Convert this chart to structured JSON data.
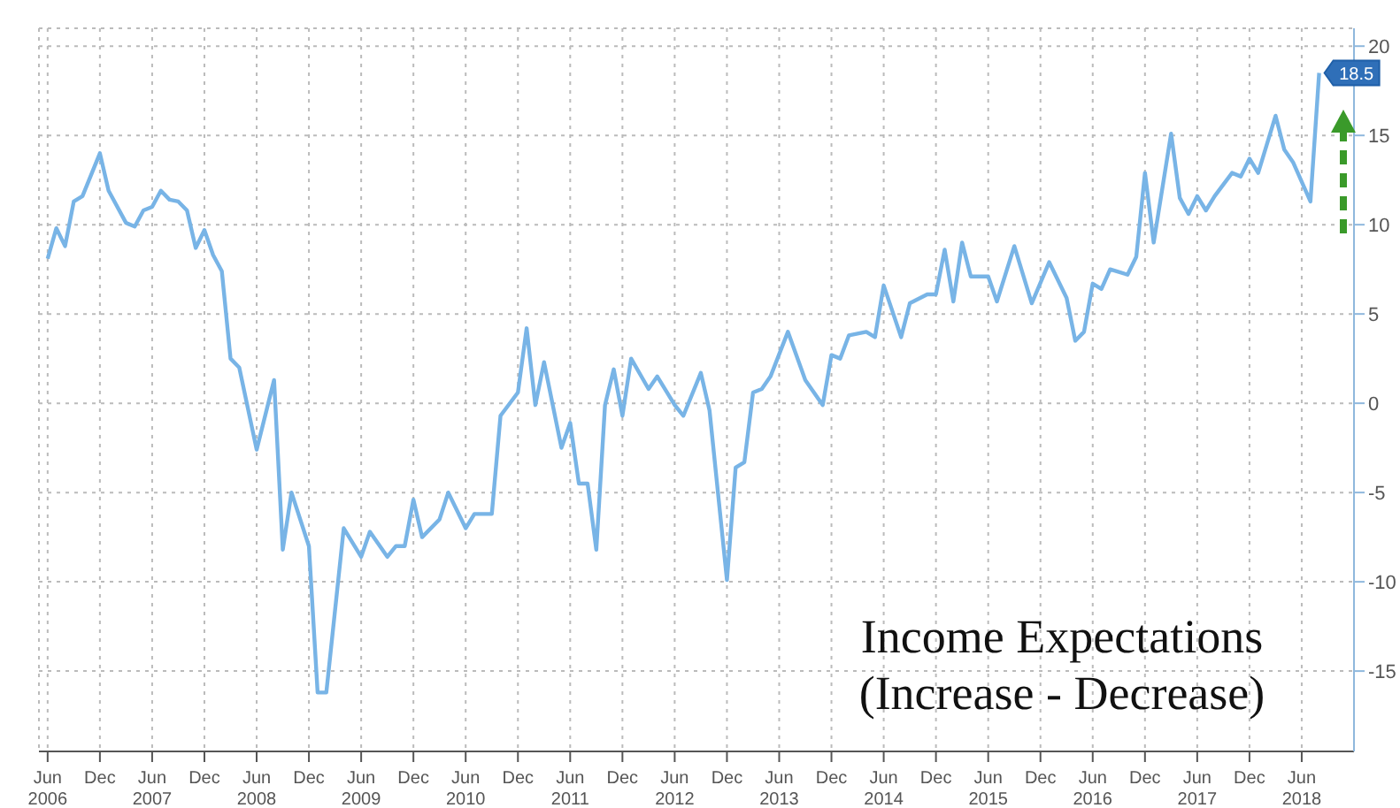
{
  "chart_data": {
    "type": "line",
    "title": "Income Expectations (Increase - Decrease)",
    "x": [
      "2006-06",
      "2006-07",
      "2006-08",
      "2006-09",
      "2006-10",
      "2006-12",
      "2007-01",
      "2007-03",
      "2007-04",
      "2007-05",
      "2007-06",
      "2007-07",
      "2007-08",
      "2007-09",
      "2007-10",
      "2007-11",
      "2007-12",
      "2008-01",
      "2008-02",
      "2008-03",
      "2008-04",
      "2008-06",
      "2008-08",
      "2008-09",
      "2008-10",
      "2008-12",
      "2009-01",
      "2009-02",
      "2009-04",
      "2009-06",
      "2009-07",
      "2009-09",
      "2009-10",
      "2009-11",
      "2009-12",
      "2010-01",
      "2010-03",
      "2010-04",
      "2010-06",
      "2010-07",
      "2010-09",
      "2010-10",
      "2010-12",
      "2011-01",
      "2011-02",
      "2011-03",
      "2011-05",
      "2011-06",
      "2011-07",
      "2011-08",
      "2011-09",
      "2011-10",
      "2011-11",
      "2011-12",
      "2012-01",
      "2012-03",
      "2012-04",
      "2012-06",
      "2012-07",
      "2012-09",
      "2012-10",
      "2012-12",
      "2013-01",
      "2013-02",
      "2013-03",
      "2013-04",
      "2013-05",
      "2013-07",
      "2013-09",
      "2013-11",
      "2013-12",
      "2014-01",
      "2014-02",
      "2014-04",
      "2014-05",
      "2014-06",
      "2014-08",
      "2014-09",
      "2014-11",
      "2014-12",
      "2015-01",
      "2015-02",
      "2015-03",
      "2015-04",
      "2015-06",
      "2015-07",
      "2015-09",
      "2015-11",
      "2016-01",
      "2016-03",
      "2016-04",
      "2016-05",
      "2016-06",
      "2016-07",
      "2016-08",
      "2016-10",
      "2016-11",
      "2016-12",
      "2017-01",
      "2017-03",
      "2017-04",
      "2017-05",
      "2017-06",
      "2017-07",
      "2017-08",
      "2017-10",
      "2017-11",
      "2017-12",
      "2018-01",
      "2018-03",
      "2018-04",
      "2018-05",
      "2018-07",
      "2018-08"
    ],
    "series": [
      {
        "color": "#78b4e6",
        "values": [
          8.1,
          9.8,
          8.8,
          11.3,
          11.6,
          14.0,
          11.9,
          10.1,
          9.9,
          10.8,
          11.0,
          11.9,
          11.4,
          11.3,
          10.8,
          8.7,
          9.7,
          8.3,
          7.4,
          2.5,
          2.0,
          -2.6,
          1.3,
          -8.2,
          -5.0,
          -8.0,
          -16.2,
          -16.2,
          -7.0,
          -8.6,
          -7.2,
          -8.6,
          -8.0,
          -8.0,
          -5.4,
          -7.5,
          -6.5,
          -5.0,
          -7.0,
          -6.2,
          -6.2,
          -0.7,
          0.6,
          4.2,
          -0.1,
          2.3,
          -2.5,
          -1.1,
          -4.5,
          -4.5,
          -8.2,
          -0.1,
          1.9,
          -0.7,
          2.5,
          0.8,
          1.5,
          -0.1,
          -0.7,
          1.7,
          -0.4,
          -9.9,
          -3.6,
          -3.3,
          0.6,
          0.8,
          1.5,
          4.0,
          1.3,
          -0.1,
          2.7,
          2.5,
          3.8,
          4.0,
          3.7,
          6.6,
          3.7,
          5.6,
          6.1,
          6.1,
          8.6,
          5.7,
          9.0,
          7.1,
          7.1,
          5.7,
          8.8,
          5.6,
          7.9,
          5.9,
          3.5,
          4.0,
          6.7,
          6.4,
          7.5,
          7.2,
          8.2,
          12.9,
          9.0,
          15.1,
          11.5,
          10.6,
          11.6,
          10.8,
          11.6,
          12.9,
          12.7,
          13.7,
          12.9,
          16.1,
          14.2,
          13.5,
          11.3,
          18.5
        ],
        "value_labels": [
          null,
          null,
          null,
          null,
          null,
          null,
          null,
          null,
          null,
          null,
          null,
          null,
          null,
          null,
          null,
          null,
          null,
          null,
          null,
          null,
          null,
          null,
          null,
          null,
          null,
          null,
          null,
          null,
          null,
          null,
          null,
          null,
          null,
          null,
          null,
          null,
          null,
          null,
          null,
          null,
          null,
          null,
          null,
          null,
          null,
          null,
          null,
          null,
          null,
          null,
          null,
          null,
          null,
          null,
          null,
          null,
          null,
          null,
          null,
          null,
          null,
          null,
          null,
          null,
          null,
          null,
          null,
          null,
          null,
          null,
          null,
          null,
          null,
          null,
          null,
          null,
          null,
          null,
          null,
          null,
          null,
          null,
          null,
          null,
          null,
          null,
          null,
          null,
          null,
          null,
          null,
          null,
          null,
          null,
          null,
          null,
          null,
          null,
          null,
          null,
          null,
          null,
          null,
          null,
          null,
          null,
          null,
          null,
          null,
          null,
          null,
          null,
          null,
          "18.5"
        ]
      }
    ],
    "xlim": [
      "2006-05",
      "2018-12"
    ],
    "xticks": [
      {
        "value": "2006-06",
        "label": "Jun 2006"
      },
      {
        "value": "2006-12",
        "label": "Dec"
      },
      {
        "value": "2007-06",
        "label": "Jun 2007"
      },
      {
        "value": "2007-12",
        "label": "Dec"
      },
      {
        "value": "2008-06",
        "label": "Jun 2008"
      },
      {
        "value": "2008-12",
        "label": "Dec"
      },
      {
        "value": "2009-06",
        "label": "Jun 2009"
      },
      {
        "value": "2009-12",
        "label": "Dec"
      },
      {
        "value": "2010-06",
        "label": "Jun 2010"
      },
      {
        "value": "2010-12",
        "label": "Dec"
      },
      {
        "value": "2011-06",
        "label": "Jun 2011"
      },
      {
        "value": "2011-12",
        "label": "Dec"
      },
      {
        "value": "2012-06",
        "label": "Jun 2012"
      },
      {
        "value": "2012-12",
        "label": "Dec"
      },
      {
        "value": "2013-06",
        "label": "Jun 2013"
      },
      {
        "value": "2013-12",
        "label": "Dec"
      },
      {
        "value": "2014-06",
        "label": "Jun 2014"
      },
      {
        "value": "2014-12",
        "label": "Dec"
      },
      {
        "value": "2015-06",
        "label": "Jun 2015"
      },
      {
        "value": "2015-12",
        "label": "Dec"
      },
      {
        "value": "2016-06",
        "label": "Jun 2016"
      },
      {
        "value": "2016-12",
        "label": "Dec"
      },
      {
        "value": "2017-06",
        "label": "Jun 2017"
      },
      {
        "value": "2017-12",
        "label": "Dec"
      },
      {
        "value": "2018-06",
        "label": "Jun 2018"
      }
    ],
    "ylim": [
      -19.5,
      21
    ],
    "yticks": [
      -15,
      -10,
      -5,
      0,
      5,
      10,
      15,
      20
    ],
    "grid": true,
    "marker": "none",
    "line_style": "solid"
  }
}
